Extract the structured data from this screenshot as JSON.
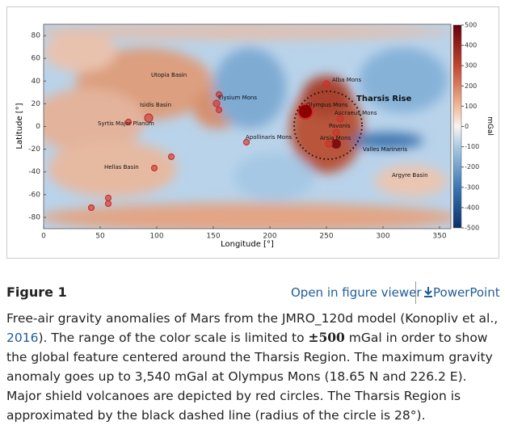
{
  "chart_data": {
    "type": "heatmap",
    "x_label": "Longitude [°]",
    "y_label": "Latitude [°]",
    "colorbar_label": "mGal",
    "xlim": [
      0,
      360
    ],
    "ylim": [
      -90,
      90
    ],
    "xticks": [
      0,
      50,
      100,
      150,
      200,
      250,
      300,
      350
    ],
    "yticks": [
      -80,
      -60,
      -40,
      -20,
      0,
      20,
      40,
      60,
      80
    ],
    "zlim": [
      -500,
      500
    ],
    "zticks": [
      -500,
      -400,
      -300,
      -200,
      -100,
      0,
      100,
      200,
      300,
      400,
      500
    ],
    "annotations": [
      "Utopia Basin",
      "Isidis Basin",
      "Syrtis Major Planum",
      "Hellas Basin",
      "Elysium Mons",
      "Apollinaris Mons",
      "Alba Mons",
      "Olympus Mons",
      "Tharsis Rise",
      "Ascraeus Mons",
      "Pavonis",
      "Arsia Mons",
      "Valles Marineris",
      "Argyre Basin"
    ]
  },
  "figure_label": "Figure 1",
  "links": {
    "viewer": "Open in figure viewer",
    "powerpoint": "PowerPoint"
  },
  "caption": [
    "Free-air gravity anomalies of Mars from the JMRO_120d model (Konopliv et al., ",
    "2016",
    "). The range of the color scale is limited to ",
    "±500",
    " mGal in order to show the global feature centered around the Tharsis Region. The maximum gravity anomaly goes up to 3,540 mGal at Olympus Mons (18.65 N and 226.2 E). Major shield volcanoes are depicted by red circles. The Tharsis Region is approximated by the black dashed line (radius of the circle is 28°)."
  ]
}
